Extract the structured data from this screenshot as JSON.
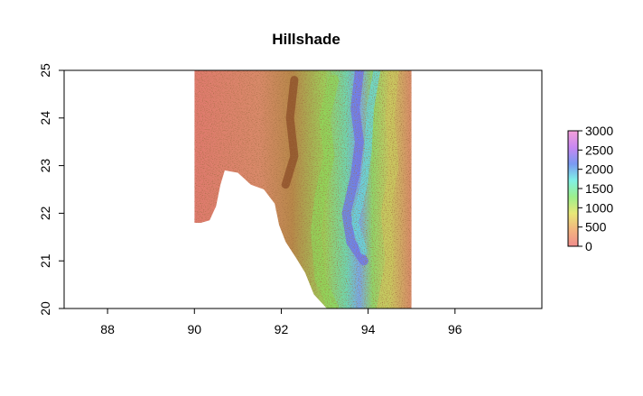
{
  "chart_data": {
    "type": "heatmap",
    "title": "Hillshade",
    "xlabel": "",
    "ylabel": "",
    "xlim": [
      87,
      98
    ],
    "ylim": [
      20,
      25
    ],
    "x_ticks": [
      88,
      90,
      92,
      94,
      96
    ],
    "y_ticks": [
      20,
      21,
      22,
      23,
      24,
      25
    ],
    "x_tick_labels": [
      "88",
      "90",
      "92",
      "94",
      "96"
    ],
    "y_tick_labels": [
      "20",
      "21",
      "22",
      "23",
      "24",
      "25"
    ],
    "raster_extent": {
      "xmin": 90,
      "xmax": 95,
      "ymin": 20,
      "ymax": 25
    },
    "colorbar": {
      "min": 0,
      "max": 3000,
      "ticks": [
        0,
        500,
        1000,
        1500,
        2000,
        2500,
        3000
      ],
      "tick_labels": [
        "0",
        "500",
        "1000",
        "1500",
        "2000",
        "2500",
        "3000"
      ],
      "colors": [
        "#f08c8c",
        "#f2b57f",
        "#e8e878",
        "#9cf08c",
        "#80f0e6",
        "#7a9af2",
        "#c888f2",
        "#f4a0d8"
      ]
    },
    "hillshade_colors": {
      "shade_dark": "#7a3b1e",
      "shade_mid": "#a0522d"
    }
  }
}
